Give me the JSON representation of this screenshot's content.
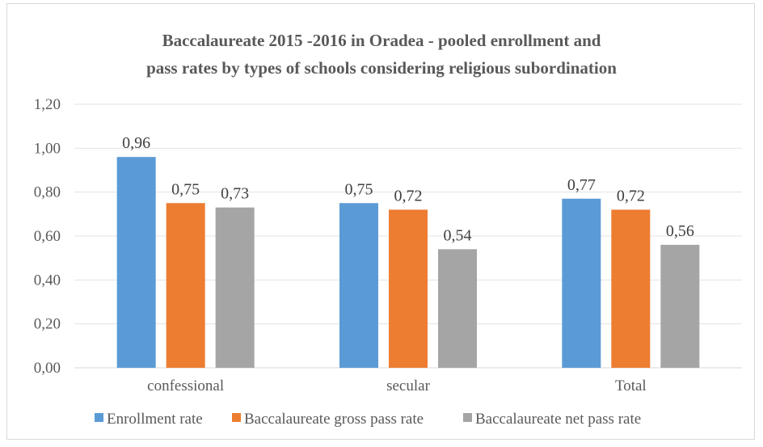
{
  "chart_data": {
    "type": "bar",
    "title_lines": [
      "Baccalaureate 2015 -2016 in Oradea - pooled enrollment and",
      "pass rates by types of schools considering religious subordination"
    ],
    "categories": [
      "confessional",
      "secular",
      "Total"
    ],
    "series": [
      {
        "name": "Enrollment rate",
        "values": [
          0.96,
          0.75,
          0.77
        ],
        "labels": [
          "0,96",
          "0,75",
          "0,77"
        ],
        "color": "#5b9bd5"
      },
      {
        "name": "Baccalaureate gross pass rate",
        "values": [
          0.75,
          0.72,
          0.72
        ],
        "labels": [
          "0,75",
          "0,72",
          "0,72"
        ],
        "color": "#ed7d31"
      },
      {
        "name": "Baccalaureate net pass rate",
        "values": [
          0.73,
          0.54,
          0.56
        ],
        "labels": [
          "0,73",
          "0,54",
          "0,56"
        ],
        "color": "#a5a5a5"
      }
    ],
    "y_ticks": [
      "0,00",
      "0,20",
      "0,40",
      "0,60",
      "0,80",
      "1,00",
      "1,20"
    ],
    "ylim": [
      0,
      1.2
    ],
    "xlabel": "",
    "ylabel": "",
    "grid": true,
    "legend_position": "bottom"
  }
}
